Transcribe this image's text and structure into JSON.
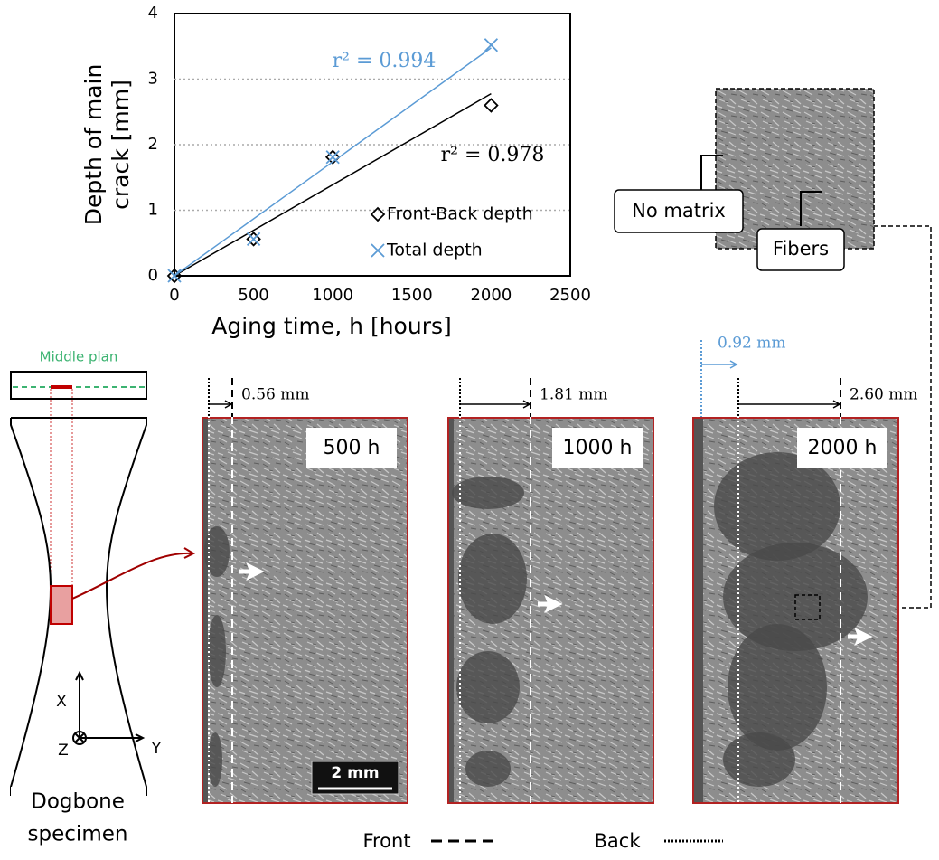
{
  "chart_data": {
    "type": "scatter",
    "xlabel": "Aging time, h [hours]",
    "ylabel": [
      "Depth of main",
      "crack [mm]"
    ],
    "x": [
      0,
      500,
      1000,
      2000
    ],
    "series": [
      {
        "name": "Front-Back depth",
        "color": "#000000",
        "marker": "diamond",
        "values": [
          0,
          0.56,
          1.81,
          2.6
        ],
        "trendline_label": "r² = 0.978"
      },
      {
        "name": "Total depth",
        "color": "#5b9bd5",
        "marker": "x",
        "values": [
          0,
          0.56,
          1.81,
          3.52
        ],
        "trendline_label": "r² = 0.994"
      }
    ],
    "xlim": [
      0,
      2500
    ],
    "xticks": [
      0,
      500,
      1000,
      1500,
      2000,
      2500
    ],
    "ylim": [
      0,
      4
    ],
    "yticks": [
      0,
      1,
      2,
      3,
      4
    ],
    "grid": true,
    "trendline": "linear",
    "legend": "lower right"
  },
  "figure": {
    "specimen": {
      "plane_label": "Middle plan",
      "axes": [
        "X",
        "Y",
        "Z"
      ],
      "caption": [
        "Dogbone",
        "specimen"
      ]
    },
    "panels": [
      {
        "time": "500 h",
        "front_depth": "0.56 mm"
      },
      {
        "time": "1000 h",
        "front_depth": "1.81 mm"
      },
      {
        "time": "2000 h",
        "front_depth": "2.60 mm",
        "extra_depth": "0.92 mm"
      }
    ],
    "scale_bar": "2 mm",
    "inset_labels": [
      "No matrix",
      "Fibers"
    ],
    "legend": [
      "Front",
      "Back"
    ]
  }
}
